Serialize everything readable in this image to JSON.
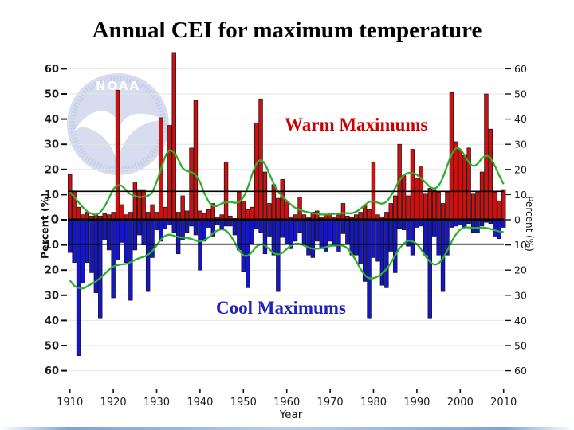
{
  "slide": {
    "title": "Annual CEI for maximum temperature"
  },
  "annotations": {
    "warm_label": "Warm Maximums",
    "cool_label": "Cool Maximums"
  },
  "axes": {
    "x_label": "Year",
    "y_label_left": "Percent (%)",
    "y_label_right": "Percent (%)",
    "x_ticks": [
      1910,
      1920,
      1930,
      1940,
      1950,
      1960,
      1970,
      1980,
      1990,
      2000,
      2010
    ],
    "y_tick_values": [
      60,
      50,
      40,
      30,
      20,
      10,
      0,
      -10,
      -20,
      -30,
      -40,
      -50,
      -60
    ]
  },
  "reference_lines": {
    "upper_pct": 11.3,
    "lower_pct": -9.7,
    "zero_pct": 0
  },
  "watermark": {
    "text": "NOAA"
  },
  "colors": {
    "warm_bar": "#cf1010",
    "cool_bar": "#1515cd",
    "bar_outline": "#111111",
    "trend_line": "#2db02d",
    "warm_label_text": "#cc0000",
    "cool_label_text": "#2121bc",
    "grid": "#e4e4e4",
    "axis_text": "#1a1a1a",
    "reference_line": "#000000",
    "watermark_fill": "#d3d9ee"
  },
  "chart_data": {
    "type": "bar",
    "title": "Annual CEI for maximum temperature",
    "xlabel": "Year",
    "ylabel": "Percent (%)",
    "x_range": [
      1910,
      2010
    ],
    "ylim": [
      -60,
      68
    ],
    "grid": "horizontal every 10, light gray",
    "legend_position": "in-plot text annotations",
    "trend_note": "green line = 9-point weighted smooth of each series",
    "years": [
      1910,
      1911,
      1912,
      1913,
      1914,
      1915,
      1916,
      1917,
      1918,
      1919,
      1920,
      1921,
      1922,
      1923,
      1924,
      1925,
      1926,
      1927,
      1928,
      1929,
      1930,
      1931,
      1932,
      1933,
      1934,
      1935,
      1936,
      1937,
      1938,
      1939,
      1940,
      1941,
      1942,
      1943,
      1944,
      1945,
      1946,
      1947,
      1948,
      1949,
      1950,
      1951,
      1952,
      1953,
      1954,
      1955,
      1956,
      1957,
      1958,
      1959,
      1960,
      1961,
      1962,
      1963,
      1964,
      1965,
      1966,
      1967,
      1968,
      1969,
      1970,
      1971,
      1972,
      1973,
      1974,
      1975,
      1976,
      1977,
      1978,
      1979,
      1980,
      1981,
      1982,
      1983,
      1984,
      1985,
      1986,
      1987,
      1988,
      1989,
      1990,
      1991,
      1992,
      1993,
      1994,
      1995,
      1996,
      1997,
      1998,
      1999,
      2000,
      2001,
      2002,
      2003,
      2004,
      2005,
      2006,
      2007,
      2008,
      2009,
      2010
    ],
    "series": [
      {
        "name": "Warm Maximums",
        "color": "#cf1010",
        "values": [
          18,
          11.5,
          5,
          2,
          3,
          1.5,
          2,
          1.5,
          2.5,
          2,
          3,
          51.5,
          6,
          2,
          3,
          15,
          12,
          12,
          3,
          6,
          3,
          40.5,
          5,
          37.5,
          66.5,
          3,
          9.5,
          3.5,
          28.5,
          47.5,
          3.5,
          2.5,
          4,
          6.5,
          1,
          2,
          23,
          1.5,
          0.5,
          11,
          7.5,
          4,
          5,
          38.5,
          48,
          19,
          6.5,
          14,
          8.5,
          16,
          7,
          1,
          2,
          9,
          2,
          1,
          3,
          3.5,
          1,
          2,
          2.5,
          1,
          2,
          6.5,
          1.5,
          1,
          2,
          3,
          5.5,
          4,
          23,
          2,
          1,
          3,
          6.5,
          9.5,
          30,
          17.5,
          9.5,
          28,
          16.5,
          21,
          10.5,
          12.5,
          12,
          11,
          6.5,
          11,
          50.5,
          31,
          28,
          25.5,
          28.5,
          10.5,
          11,
          19,
          50,
          36,
          11,
          7.5,
          12
        ]
      },
      {
        "name": "Cool Maximums",
        "color": "#1515cd",
        "values": [
          -13,
          -17,
          -54,
          -25,
          -17,
          -21,
          -29,
          -39,
          -8,
          -12,
          -31,
          -16,
          -9,
          -17,
          -32,
          -12,
          -6,
          -10,
          -28.5,
          -15,
          -4,
          -8.5,
          -3.5,
          -2,
          -5,
          -13.5,
          -8,
          -5,
          -2.5,
          -6,
          -20,
          -8.5,
          -3,
          -6.5,
          -2,
          -4,
          -2.5,
          -2.5,
          -6,
          -12,
          -20.5,
          -27,
          -9.5,
          -3.5,
          -5,
          -13.5,
          -6.5,
          -14,
          -28.5,
          -7,
          -9.5,
          -11.5,
          -8.5,
          -5,
          -10,
          -14,
          -15,
          -8.5,
          -11.5,
          -12.5,
          -8.5,
          -10.5,
          -12.5,
          -5.5,
          -9.5,
          -14,
          -14,
          -17.5,
          -24.5,
          -39,
          -15,
          -16.5,
          -26,
          -27,
          -12.5,
          -21,
          -3.5,
          -4,
          -10.5,
          -14,
          -3,
          -2.5,
          -14,
          -39,
          -6.5,
          -14,
          -28.5,
          -14,
          -3,
          -2.5,
          -2,
          -3,
          -1.5,
          -5,
          -5,
          -2.5,
          -1,
          -1.5,
          -6.5,
          -7.5,
          -3
        ]
      }
    ]
  }
}
